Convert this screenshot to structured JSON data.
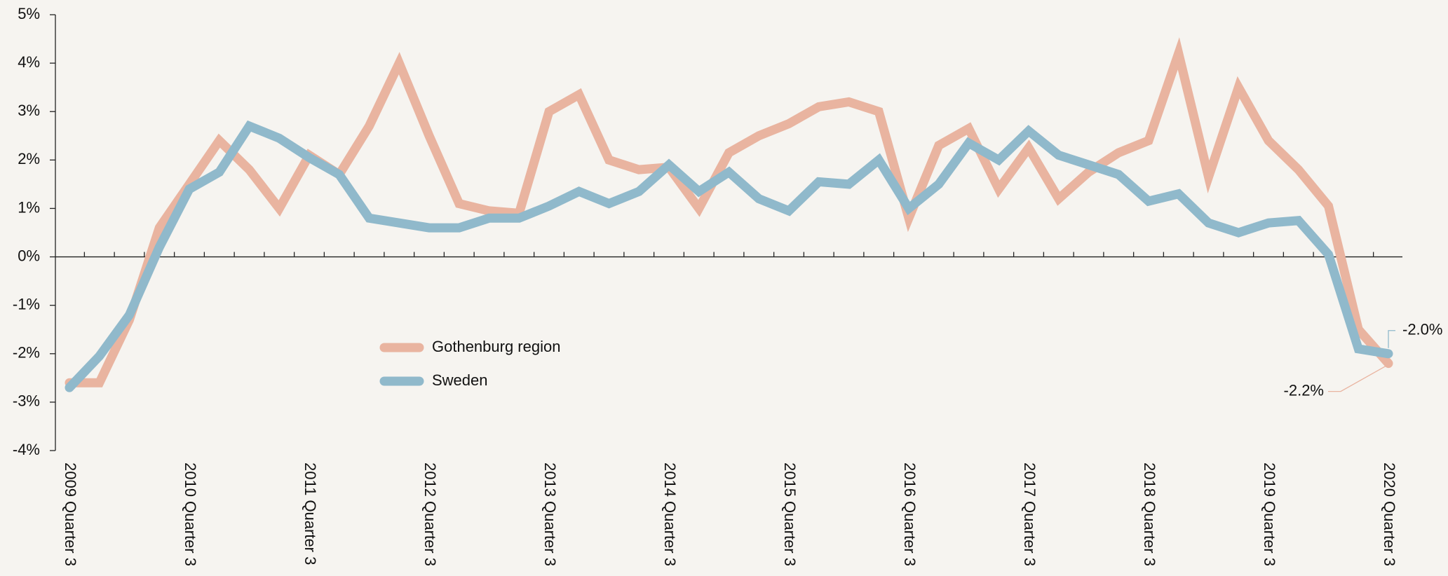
{
  "chart_data": {
    "type": "line",
    "categories": [
      "2009 Quarter 3",
      null,
      null,
      null,
      "2010 Quarter 3",
      null,
      null,
      null,
      "2011 Quarter 3",
      null,
      null,
      null,
      "2012 Quarter 3",
      null,
      null,
      null,
      "2013 Quarter 3",
      null,
      null,
      null,
      "2014 Quarter 3",
      null,
      null,
      null,
      "2015 Quarter 3",
      null,
      null,
      null,
      "2016 Quarter 3",
      null,
      null,
      null,
      "2017 Quarter 3",
      null,
      null,
      null,
      "2018 Quarter 3",
      null,
      null,
      null,
      "2019 Quarter 3",
      null,
      null,
      null,
      "2020 Quarter 3"
    ],
    "series": [
      {
        "name": "Gothenburg region",
        "color": "#e9b4a0",
        "values": [
          -2.6,
          -2.6,
          -1.3,
          0.6,
          1.5,
          2.4,
          1.8,
          1.0,
          2.1,
          1.7,
          2.7,
          4.0,
          2.5,
          1.1,
          0.95,
          0.9,
          3.0,
          3.35,
          2.0,
          1.8,
          1.85,
          1.0,
          2.15,
          2.5,
          2.75,
          3.1,
          3.2,
          3.0,
          0.8,
          2.3,
          2.65,
          1.4,
          2.25,
          1.2,
          1.75,
          2.15,
          2.4,
          4.2,
          1.65,
          3.5,
          2.4,
          1.8,
          1.05,
          -1.5,
          -2.2
        ],
        "value_labels": [
          null,
          null,
          null,
          null,
          null,
          null,
          null,
          null,
          null,
          null,
          null,
          null,
          null,
          null,
          null,
          null,
          null,
          null,
          null,
          null,
          null,
          null,
          null,
          null,
          null,
          null,
          null,
          null,
          null,
          null,
          null,
          null,
          null,
          null,
          null,
          null,
          null,
          null,
          null,
          null,
          null,
          null,
          null,
          null,
          "-2.2%"
        ]
      },
      {
        "name": "Sweden",
        "color": "#90b9cb",
        "values": [
          -2.7,
          -2.05,
          -1.2,
          0.2,
          1.4,
          1.75,
          2.7,
          2.45,
          2.05,
          1.7,
          0.8,
          0.7,
          0.6,
          0.6,
          0.8,
          0.8,
          1.05,
          1.35,
          1.1,
          1.35,
          1.9,
          1.35,
          1.75,
          1.2,
          0.95,
          1.55,
          1.5,
          2.0,
          1.0,
          1.5,
          2.35,
          2.0,
          2.6,
          2.1,
          1.9,
          1.7,
          1.15,
          1.3,
          0.7,
          0.5,
          0.7,
          0.75,
          0.05,
          -1.9,
          -2.0
        ],
        "value_labels": [
          null,
          null,
          null,
          null,
          null,
          null,
          null,
          null,
          null,
          null,
          null,
          null,
          null,
          null,
          null,
          null,
          null,
          null,
          null,
          null,
          null,
          null,
          null,
          null,
          null,
          null,
          null,
          null,
          null,
          null,
          null,
          null,
          null,
          null,
          null,
          null,
          null,
          null,
          null,
          null,
          null,
          null,
          null,
          null,
          "-2.0%"
        ]
      }
    ],
    "ylim": [
      -4,
      5
    ],
    "yticks": [
      {
        "value": -4,
        "label": "-4%"
      },
      {
        "value": -3,
        "label": "-3%"
      },
      {
        "value": -2,
        "label": "-2%"
      },
      {
        "value": -1,
        "label": "-1%"
      },
      {
        "value": 0,
        "label": "0%"
      },
      {
        "value": 1,
        "label": "1%"
      },
      {
        "value": 2,
        "label": "2%"
      },
      {
        "value": 3,
        "label": "3%"
      },
      {
        "value": 4,
        "label": "4%"
      },
      {
        "value": 5,
        "label": "5%"
      }
    ],
    "grid": false,
    "legend": "center-left"
  }
}
